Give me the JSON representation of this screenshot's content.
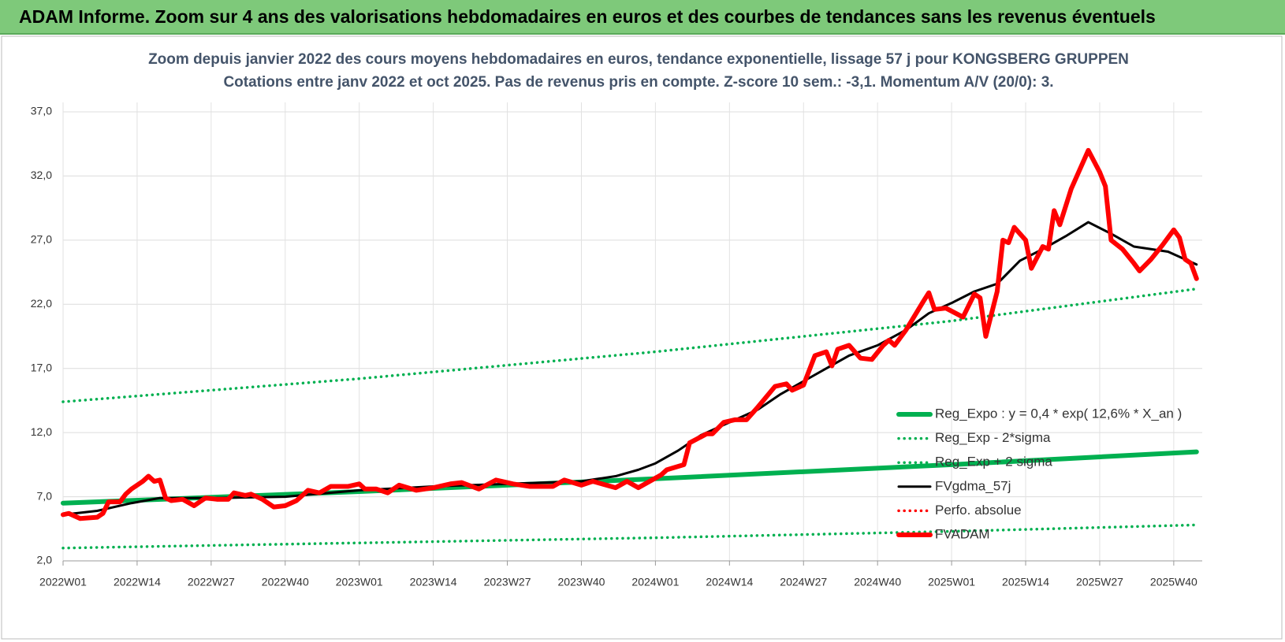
{
  "header": {
    "title": "ADAM Informe. Zoom sur 4 ans des valorisations hebdomadaires en euros et des courbes de tendances sans les revenus éventuels"
  },
  "chart_data": {
    "type": "line",
    "title": "Zoom depuis janvier 2022 des cours moyens hebdomadaires en euros, tendance exponentielle, lissage 57 j pour KONGSBERG GRUPPEN",
    "subtitle": "Cotations entre janv 2022 et oct 2025. Pas de revenus pris en compte. Z-score 10 sem.: -3,1.  Momentum A/V (20/0): 3.",
    "xlim": [
      0,
      200
    ],
    "xticks": [
      {
        "value": 0,
        "label": "2022W01"
      },
      {
        "value": 13,
        "label": "2022W14"
      },
      {
        "value": 26,
        "label": "2022W27"
      },
      {
        "value": 39,
        "label": "2022W40"
      },
      {
        "value": 52,
        "label": "2023W01"
      },
      {
        "value": 65,
        "label": "2023W14"
      },
      {
        "value": 78,
        "label": "2023W27"
      },
      {
        "value": 91,
        "label": "2023W40"
      },
      {
        "value": 104,
        "label": "2024W01"
      },
      {
        "value": 117,
        "label": "2024W14"
      },
      {
        "value": 130,
        "label": "2024W27"
      },
      {
        "value": 143,
        "label": "2024W40"
      },
      {
        "value": 156,
        "label": "2025W01"
      },
      {
        "value": 169,
        "label": "2025W14"
      },
      {
        "value": 182,
        "label": "2025W27"
      },
      {
        "value": 195,
        "label": "2025W40"
      }
    ],
    "ylim": [
      2,
      37
    ],
    "yticks": [
      {
        "value": 2,
        "label": "2,0"
      },
      {
        "value": 7,
        "label": "7,0"
      },
      {
        "value": 12,
        "label": "12,0"
      },
      {
        "value": 17,
        "label": "17,0"
      },
      {
        "value": 22,
        "label": "22,0"
      },
      {
        "value": 27,
        "label": "27,0"
      },
      {
        "value": 32,
        "label": "32,0"
      },
      {
        "value": 37,
        "label": "37,0"
      }
    ],
    "grid": true,
    "series": [
      {
        "name": "Reg_Expo : y = 0,4 * exp( 12,6% * X_an )",
        "color": "#00b050",
        "line_style": "solid",
        "line_width": 6,
        "x": [
          0,
          52,
          104,
          156,
          199
        ],
        "values": [
          6.5,
          7.4,
          8.4,
          9.5,
          10.5
        ]
      },
      {
        "name": "Reg_Exp - 2*sigma",
        "color": "#00b050",
        "line_style": "dotted",
        "line_width": 3.5,
        "x": [
          0,
          52,
          104,
          156,
          199
        ],
        "values": [
          3.0,
          3.4,
          3.8,
          4.3,
          4.8
        ]
      },
      {
        "name": "Reg_Exp + 2 sigma",
        "color": "#00b050",
        "line_style": "dotted",
        "line_width": 3.5,
        "x": [
          0,
          52,
          104,
          156,
          199
        ],
        "values": [
          14.4,
          16.2,
          18.3,
          20.7,
          23.2
        ]
      },
      {
        "name": "FVgdma_57j",
        "color": "#000000",
        "line_style": "solid",
        "line_width": 3,
        "x": [
          0,
          6,
          12,
          17,
          26,
          39,
          52,
          65,
          78,
          91,
          97,
          101,
          104,
          108,
          112,
          117,
          122,
          126,
          130,
          134,
          138,
          143,
          148,
          152,
          156,
          160,
          164,
          168,
          172,
          176,
          180,
          184,
          188,
          194,
          199
        ],
        "values": [
          5.6,
          5.9,
          6.5,
          6.9,
          6.9,
          7.0,
          7.5,
          7.8,
          8.0,
          8.2,
          8.6,
          9.1,
          9.6,
          10.6,
          11.8,
          12.8,
          13.8,
          15.0,
          16.0,
          17.0,
          18.0,
          18.8,
          20.0,
          21.3,
          22.1,
          23.0,
          23.6,
          25.4,
          26.3,
          27.3,
          28.4,
          27.5,
          26.5,
          26.1,
          25.1
        ]
      },
      {
        "name": "Perfo. absolue",
        "color": "#ff0000",
        "line_style": "dotted",
        "line_width": 3.5,
        "x": [],
        "values": []
      },
      {
        "name": "FVADAM",
        "color": "#ff0000",
        "line_style": "solid",
        "line_width": 6,
        "x": [
          0,
          1,
          3,
          6,
          7,
          8,
          10,
          11,
          12,
          14,
          15,
          16,
          17,
          18,
          19,
          21,
          23,
          25,
          27,
          29,
          30,
          32,
          33,
          35,
          37,
          39,
          41,
          43,
          45,
          47,
          50,
          52,
          53,
          55,
          57,
          59,
          62,
          65,
          68,
          70,
          73,
          76,
          79,
          82,
          86,
          88,
          91,
          93,
          97,
          99,
          101,
          103,
          105,
          106,
          109,
          110,
          113,
          114,
          116,
          118,
          120,
          122,
          125,
          127,
          128,
          130,
          132,
          134,
          135,
          136,
          138,
          140,
          142,
          144,
          145,
          146,
          148,
          151,
          152,
          153,
          155,
          158,
          160,
          161,
          162,
          164,
          165,
          166,
          167,
          169,
          170,
          172,
          173,
          174,
          175,
          177,
          178,
          180,
          182,
          183,
          184,
          186,
          188,
          189,
          191,
          193,
          195,
          196,
          197,
          198,
          199
        ],
        "values": [
          5.6,
          5.7,
          5.3,
          5.4,
          5.7,
          6.6,
          6.6,
          7.2,
          7.6,
          8.2,
          8.6,
          8.2,
          8.3,
          6.9,
          6.7,
          6.8,
          6.3,
          6.9,
          6.8,
          6.8,
          7.3,
          7.1,
          7.2,
          6.8,
          6.2,
          6.3,
          6.7,
          7.5,
          7.3,
          7.8,
          7.8,
          8.0,
          7.6,
          7.6,
          7.3,
          7.9,
          7.5,
          7.7,
          8.0,
          8.1,
          7.6,
          8.3,
          8.0,
          7.8,
          7.8,
          8.3,
          7.9,
          8.2,
          7.7,
          8.2,
          7.7,
          8.2,
          8.7,
          9.1,
          9.5,
          11.2,
          11.9,
          11.9,
          12.8,
          13.0,
          13.0,
          14.0,
          15.6,
          15.8,
          15.3,
          15.7,
          18.0,
          18.3,
          17.2,
          18.5,
          18.8,
          17.8,
          17.7,
          18.8,
          19.2,
          18.8,
          20.0,
          22.2,
          22.9,
          21.6,
          21.7,
          21.0,
          22.8,
          22.5,
          19.5,
          23.0,
          27.0,
          26.8,
          28.0,
          27.0,
          24.8,
          26.5,
          26.3,
          29.3,
          28.2,
          31.0,
          32.0,
          34.0,
          32.3,
          31.2,
          27.0,
          26.3,
          25.2,
          24.6,
          25.5,
          26.6,
          27.8,
          27.2,
          25.5,
          25.2,
          24.0
        ]
      }
    ]
  }
}
